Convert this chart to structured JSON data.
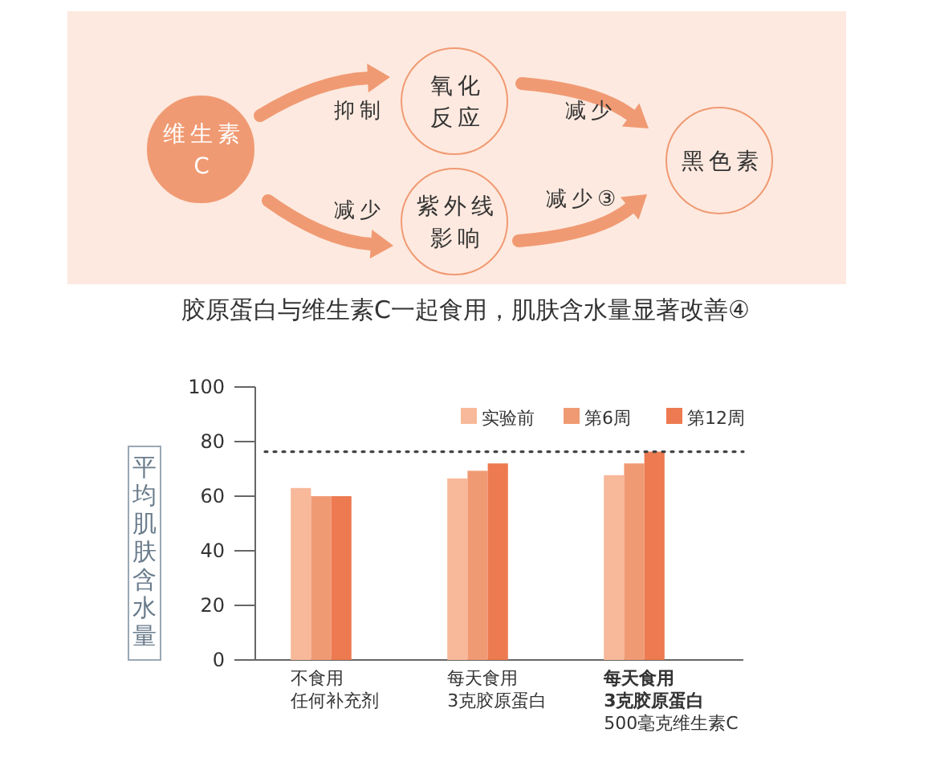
{
  "chart_data": {
    "type": "bar",
    "title": "胶原蛋白与维生素C一起食用，肌肤含水量显著改善④",
    "ylabel": "平均肌肤含水量",
    "categories": [
      "不食用任何补充剂",
      "每天食用3克胶原蛋白",
      "**每天食用3克胶原蛋白**500毫克维生素C"
    ],
    "series": [
      {
        "name": "实验前",
        "color": "#f7b99a",
        "values": [
          63,
          66.5,
          67.7
        ]
      },
      {
        "name": "第6周",
        "color": "#f09a73",
        "values": [
          60,
          69.3,
          72
        ]
      },
      {
        "name": "第12周",
        "color": "#ed7a50",
        "values": [
          60,
          72,
          76.3
        ]
      }
    ],
    "ylim": [
      0,
      100
    ],
    "yticks": [
      0,
      20,
      40,
      60,
      80,
      100
    ],
    "grid": false,
    "legend": "top right",
    "ref_lines": [
      {
        "axis": "y",
        "value": 76.3,
        "line_style": "dotted"
      }
    ],
    "annotations": [
      "维生素C",
      "抑制",
      "减少",
      "氧化反应",
      "紫外线影响",
      "减少",
      "减少③",
      "黑色素"
    ]
  }
}
